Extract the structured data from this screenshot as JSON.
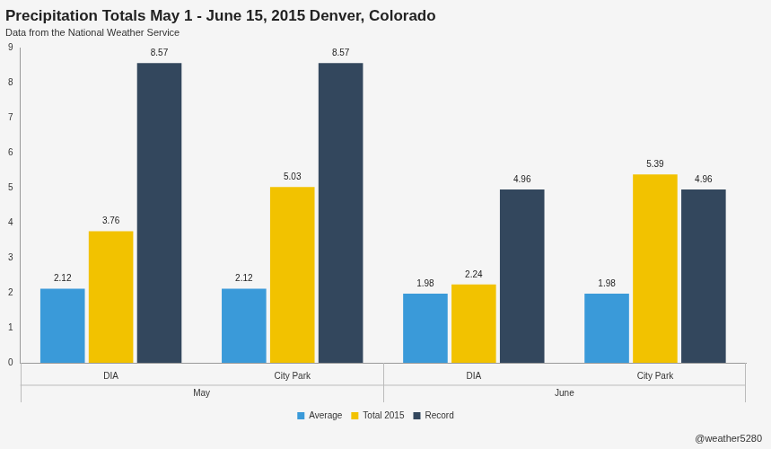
{
  "chart_data": {
    "type": "bar",
    "title": "Precipitation Totals May 1 - June 15, 2015 Denver, Colorado",
    "subtitle": "Data from the National Weather Service",
    "annotations": [
      "@weather5280"
    ],
    "categories": [
      [
        "DIA",
        "May"
      ],
      [
        "City Park",
        "May"
      ],
      [
        "DIA",
        "June"
      ],
      [
        "City Park",
        "June"
      ]
    ],
    "series": [
      {
        "name": "Average",
        "color": "#3a9ad9",
        "values": [
          2.12,
          2.12,
          1.98,
          1.98
        ]
      },
      {
        "name": "Total 2015",
        "color": "#f2c200",
        "values": [
          3.76,
          5.03,
          2.24,
          5.39
        ]
      },
      {
        "name": "Record",
        "color": "#33475d",
        "values": [
          8.57,
          8.57,
          4.96,
          4.96
        ]
      }
    ],
    "ylim": [
      0,
      9
    ],
    "yticks": [
      0,
      1,
      2,
      3,
      4,
      5,
      6,
      7,
      8,
      9
    ],
    "grid": false,
    "legend": "bottom",
    "data_labels": true
  }
}
